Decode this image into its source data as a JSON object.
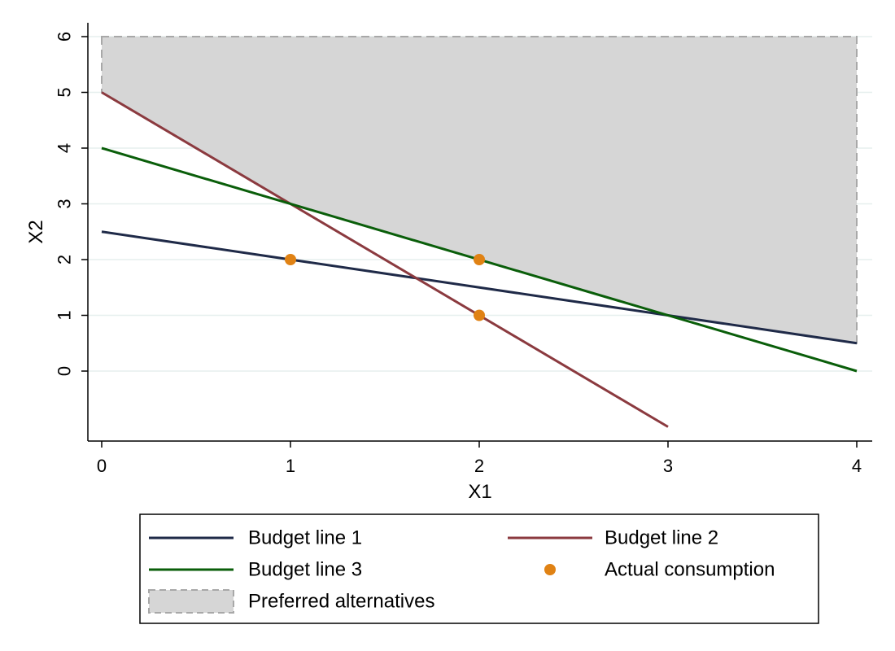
{
  "chart_data": {
    "type": "line",
    "title": "",
    "xlabel": "X1",
    "ylabel": "X2",
    "xlim": [
      0,
      4
    ],
    "ylim": [
      -1,
      6
    ],
    "xticks": [
      "0",
      "1",
      "2",
      "3",
      "4"
    ],
    "yticks": [
      "0",
      "1",
      "2",
      "3",
      "4",
      "5",
      "6"
    ],
    "grid": "horizontal",
    "legend_position": "bottom",
    "series": [
      {
        "name": "Budget line 1",
        "kind": "line",
        "color": "#1f2a48",
        "x": [
          0,
          4
        ],
        "y": [
          2.5,
          0.5
        ]
      },
      {
        "name": "Budget line 2",
        "kind": "line",
        "color": "#8b3a3f",
        "x": [
          0,
          3
        ],
        "y": [
          5,
          -1
        ]
      },
      {
        "name": "Budget line 3",
        "kind": "line",
        "color": "#0a5e0a",
        "x": [
          0,
          4
        ],
        "y": [
          4,
          0
        ]
      },
      {
        "name": "Actual consumption",
        "kind": "scatter",
        "color": "#e08214",
        "x": [
          1,
          2,
          2
        ],
        "y": [
          2,
          2,
          1
        ]
      },
      {
        "name": "Preferred alternatives",
        "kind": "area",
        "color": "#d6d6d6",
        "x": [
          0,
          0,
          1,
          3,
          4,
          4
        ],
        "y": [
          6,
          5,
          3,
          1,
          0.5,
          6
        ]
      }
    ]
  }
}
